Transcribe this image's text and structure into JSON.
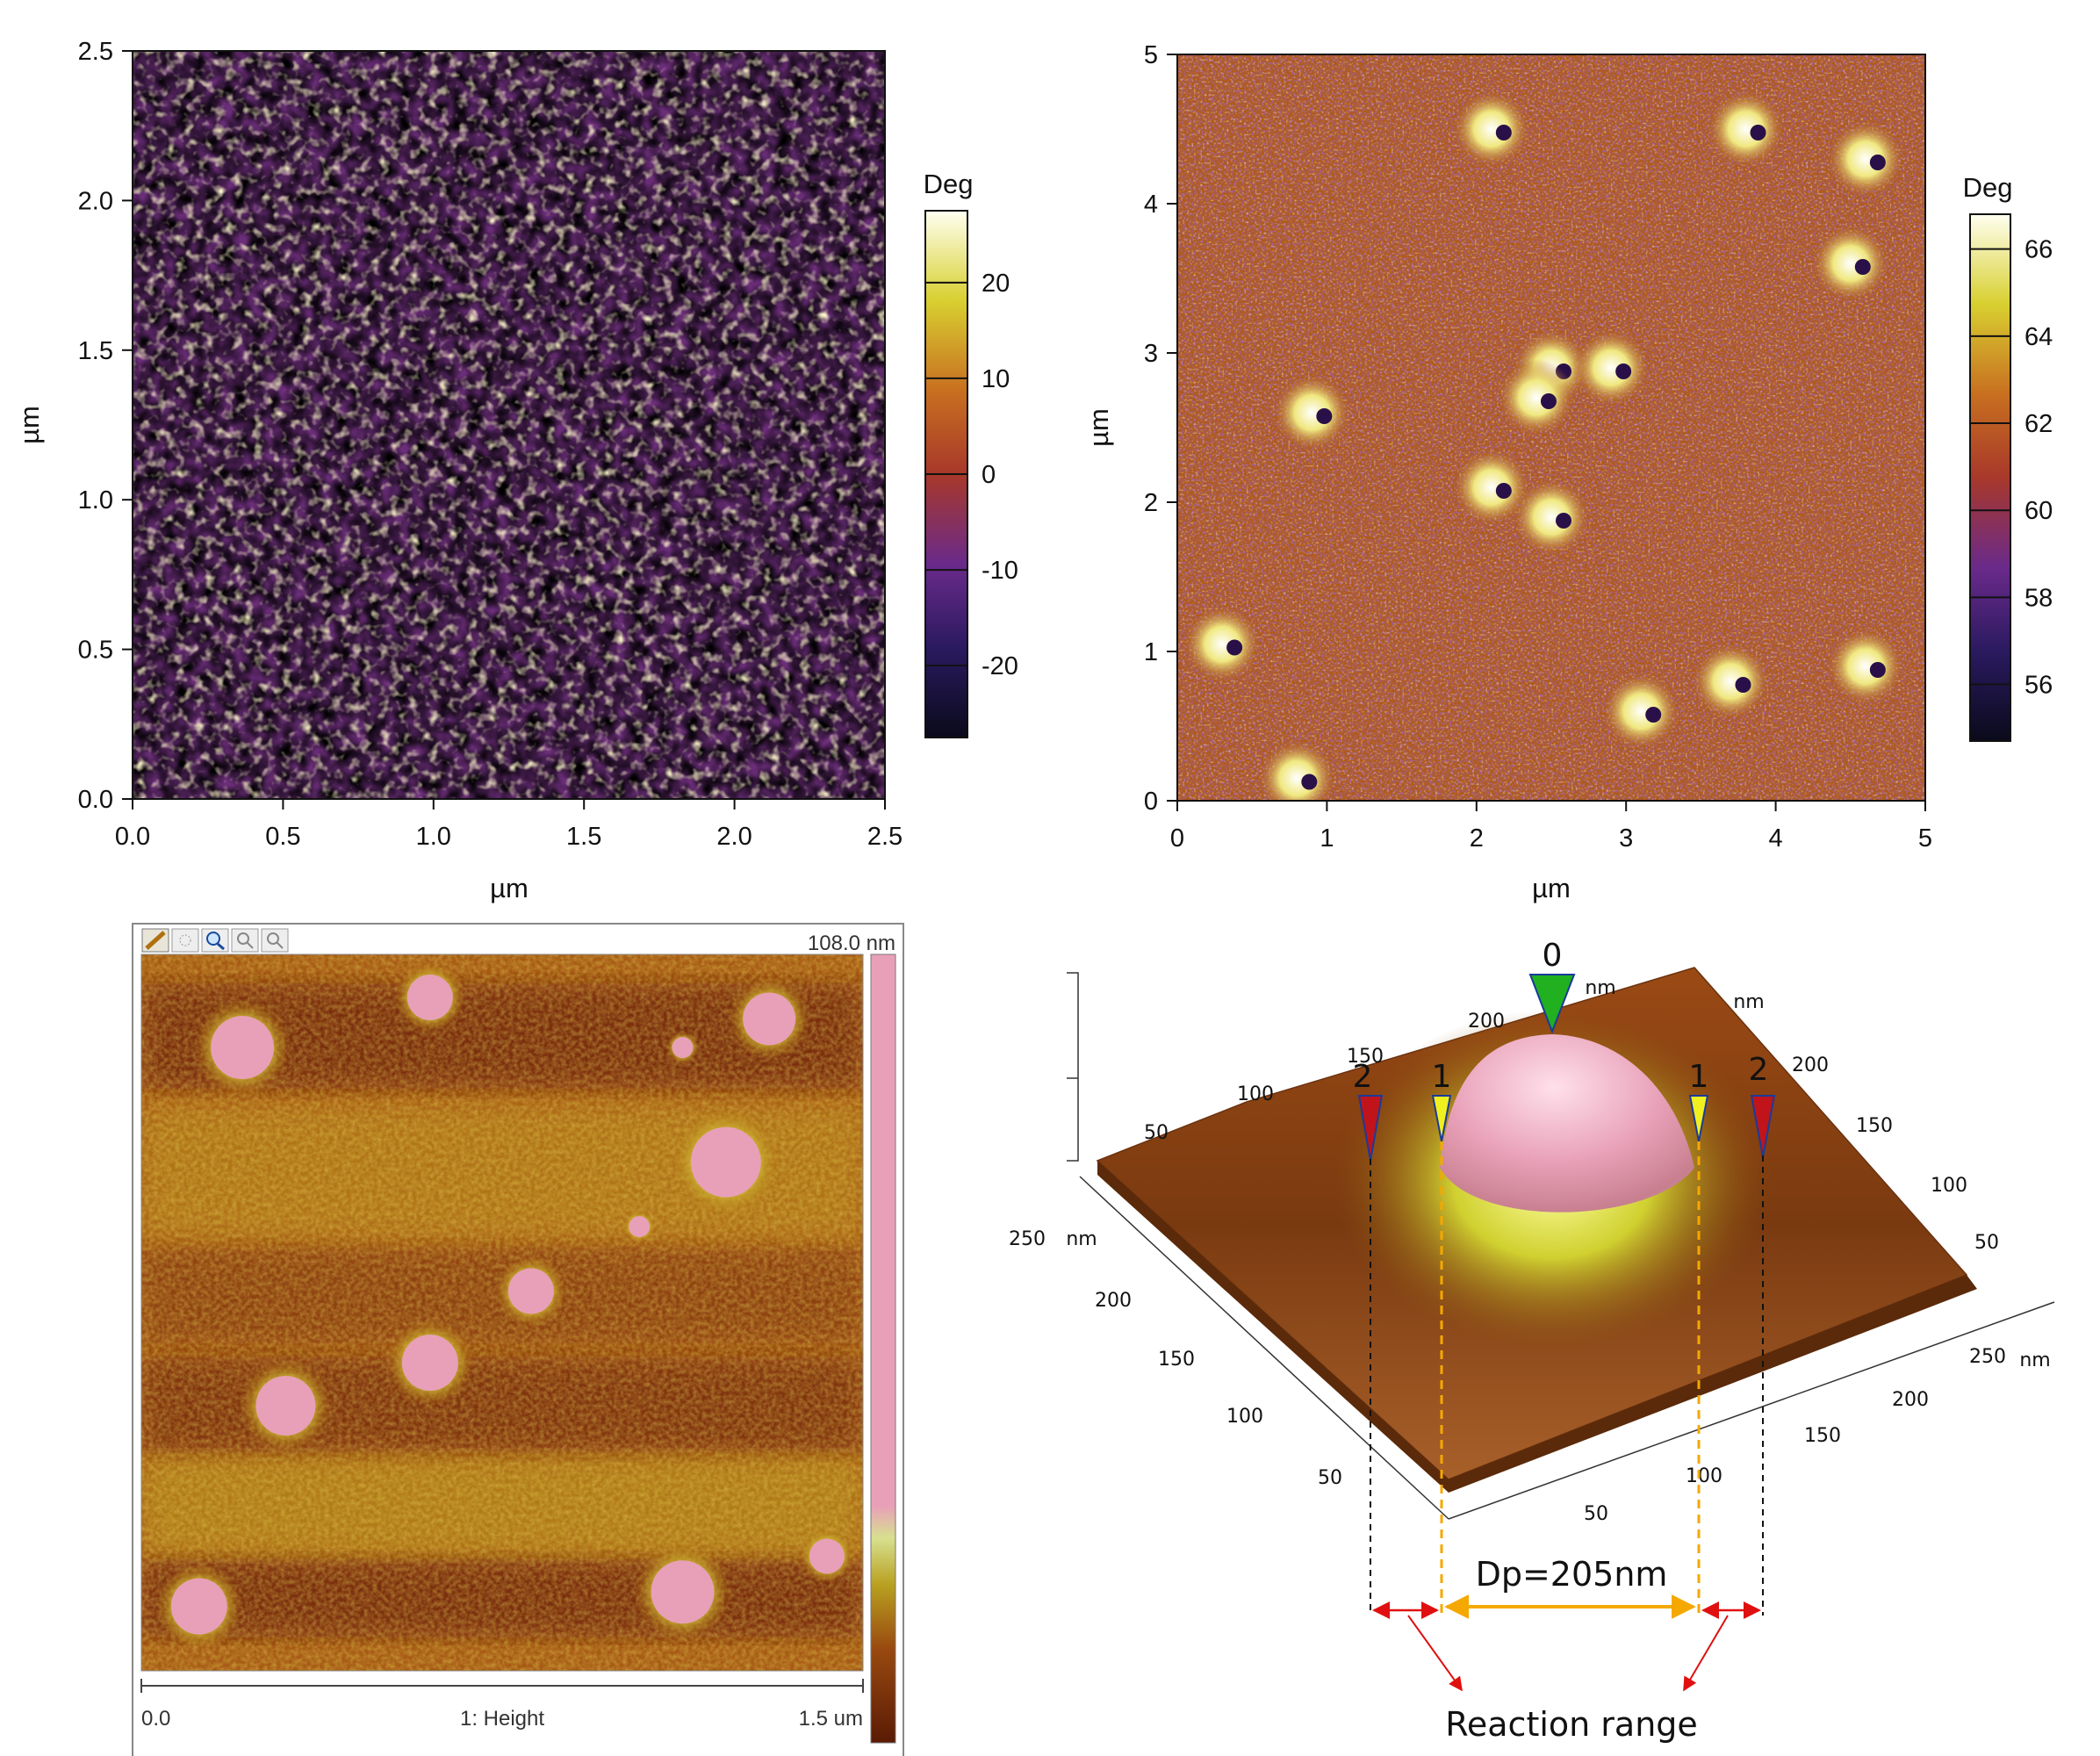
{
  "panel_a": {
    "xlabel": "µm",
    "ylabel": "µm",
    "x_ticks": [
      "0.0",
      "0.5",
      "1.0",
      "1.5",
      "2.0",
      "2.5"
    ],
    "y_ticks": [
      "0.0",
      "0.5",
      "1.0",
      "1.5",
      "2.0",
      "2.5"
    ],
    "colorbar_title": "Deg",
    "colorbar_ticks": [
      "20",
      "10",
      "0",
      "-10",
      "-20"
    ]
  },
  "panel_b": {
    "xlabel": "µm",
    "ylabel": "µm",
    "x_ticks": [
      "0",
      "1",
      "2",
      "3",
      "4",
      "5"
    ],
    "y_ticks": [
      "0",
      "1",
      "2",
      "3",
      "4",
      "5"
    ],
    "colorbar_title": "Deg",
    "colorbar_ticks": [
      "66",
      "64",
      "62",
      "60",
      "58",
      "56"
    ]
  },
  "panel_c": {
    "scale_max": "108.0 nm",
    "scale_left": "0.0",
    "channel": "1: Height",
    "scale_right": "1.5 um"
  },
  "panel_d": {
    "left_axis_ticks": [
      "250",
      "200",
      "150",
      "100",
      "50"
    ],
    "right_axis_ticks": [
      "250",
      "200",
      "150",
      "100",
      "50"
    ],
    "back_left_ticks": [
      "200",
      "150",
      "100",
      "50"
    ],
    "back_right_ticks": [
      "200",
      "150",
      "100",
      "50"
    ],
    "unit": "nm",
    "markers": {
      "center": "0",
      "inner": "1",
      "outer": "2"
    },
    "diameter_label": "Dp=205nm",
    "reaction_label": "Reaction range"
  },
  "colors": {
    "phase_dark": "#5a2a6e",
    "phase_mid": "#b5651d",
    "phase_light": "#fff5c0",
    "height_bg": "#8a4208",
    "particle_pink": "#e8a0b8",
    "halo_yellow": "#c8d030",
    "marker_red": "#c0141a",
    "marker_yellow": "#f0f020",
    "marker_green": "#20b020",
    "dim_orange": "#f5a800",
    "arrow_red": "#e01010"
  }
}
